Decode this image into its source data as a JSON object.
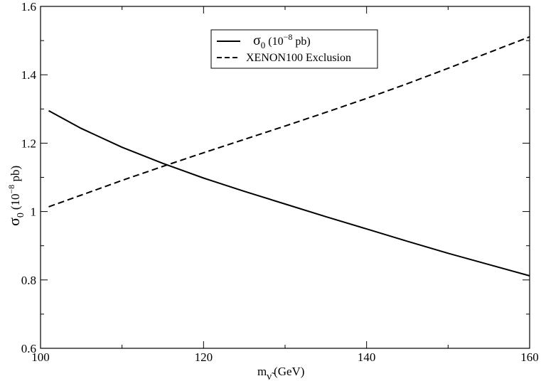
{
  "chart_data": {
    "type": "line",
    "xlim": [
      100,
      160
    ],
    "ylim": [
      0.6,
      1.6
    ],
    "x_ticks": [
      "100",
      "120",
      "140",
      "160"
    ],
    "y_ticks": [
      "0.6",
      "0.8",
      "1",
      "1.2",
      "1.4",
      "1.6"
    ],
    "xlabel": {
      "symbol": "m",
      "subscript": "ν̃",
      "unit": "(GeV)"
    },
    "ylabel": {
      "symbol": "σ",
      "subscript": "0",
      "unit_prefix": "(10",
      "unit_exponent": "−8",
      "unit_suffix": " pb)"
    },
    "grid": false,
    "legend_position": "top-center",
    "series": [
      {
        "name": "σ0 (10−8 pb)",
        "legend": {
          "symbol": "σ",
          "subscript": "0",
          "unit_prefix": " (10",
          "unit_exponent": "−8",
          "unit_suffix": " pb)"
        },
        "style": "solid",
        "color": "#000000",
        "x": [
          101,
          105,
          110,
          115,
          120,
          125,
          130,
          135,
          140,
          145,
          150,
          155,
          160
        ],
        "y": [
          1.295,
          1.243,
          1.188,
          1.141,
          1.098,
          1.059,
          1.022,
          0.985,
          0.949,
          0.913,
          0.878,
          0.845,
          0.812
        ]
      },
      {
        "name": "XENON100 Exclusion",
        "legend": {
          "text": "XENON100 Exclusion"
        },
        "style": "dashed",
        "color": "#000000",
        "x": [
          101,
          105,
          110,
          115,
          120,
          125,
          130,
          135,
          140,
          145,
          150,
          155,
          160
        ],
        "y": [
          1.014,
          1.048,
          1.091,
          1.132,
          1.172,
          1.211,
          1.25,
          1.29,
          1.331,
          1.374,
          1.419,
          1.465,
          1.511
        ]
      }
    ]
  }
}
